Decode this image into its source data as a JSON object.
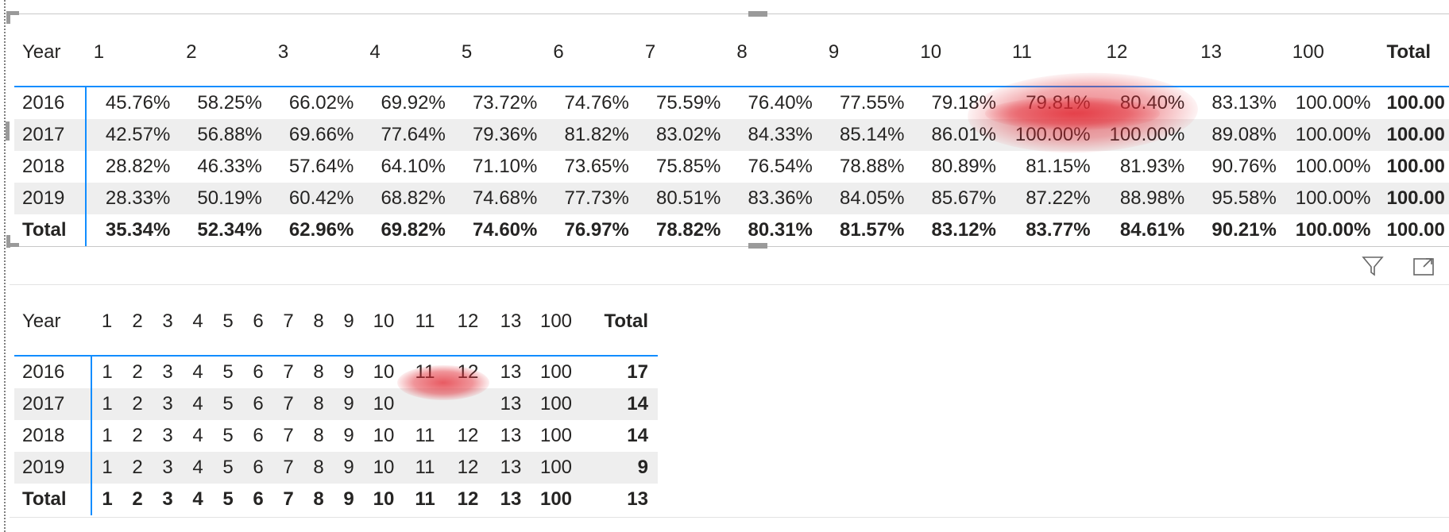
{
  "icons": {
    "filter": "filter-icon",
    "focus": "focus-mode-icon"
  },
  "colors": {
    "accent": "#118dff",
    "row_alt": "#eeeeee",
    "annotation_red": "#e12832"
  },
  "percent_table": {
    "columns": [
      "Year",
      "1",
      "2",
      "3",
      "4",
      "5",
      "6",
      "7",
      "8",
      "9",
      "10",
      "11",
      "12",
      "13",
      "100",
      "Total"
    ],
    "rows": [
      {
        "year": "2016",
        "values": [
          "45.76%",
          "58.25%",
          "66.02%",
          "69.92%",
          "73.72%",
          "74.76%",
          "75.59%",
          "76.40%",
          "77.55%",
          "79.18%",
          "79.81%",
          "80.40%",
          "83.13%",
          "100.00%"
        ],
        "total": "100.00"
      },
      {
        "year": "2017",
        "values": [
          "42.57%",
          "56.88%",
          "69.66%",
          "77.64%",
          "79.36%",
          "81.82%",
          "83.02%",
          "84.33%",
          "85.14%",
          "86.01%",
          "100.00%",
          "100.00%",
          "89.08%",
          "100.00%"
        ],
        "total": "100.00"
      },
      {
        "year": "2018",
        "values": [
          "28.82%",
          "46.33%",
          "57.64%",
          "64.10%",
          "71.10%",
          "73.65%",
          "75.85%",
          "76.54%",
          "78.88%",
          "80.89%",
          "81.15%",
          "81.93%",
          "90.76%",
          "100.00%"
        ],
        "total": "100.00"
      },
      {
        "year": "2019",
        "values": [
          "28.33%",
          "50.19%",
          "60.42%",
          "68.82%",
          "74.68%",
          "77.73%",
          "80.51%",
          "83.36%",
          "84.05%",
          "85.67%",
          "87.22%",
          "88.98%",
          "95.58%",
          "100.00%"
        ],
        "total": "100.00"
      }
    ],
    "total_row": {
      "year": "Total",
      "values": [
        "35.34%",
        "52.34%",
        "62.96%",
        "69.82%",
        "74.60%",
        "76.97%",
        "78.82%",
        "80.31%",
        "81.57%",
        "83.12%",
        "83.77%",
        "84.61%",
        "90.21%",
        "100.00%"
      ],
      "total": "100.00"
    }
  },
  "count_table": {
    "columns": [
      "Year",
      "1",
      "2",
      "3",
      "4",
      "5",
      "6",
      "7",
      "8",
      "9",
      "10",
      "11",
      "12",
      "13",
      "100",
      "Total"
    ],
    "rows": [
      {
        "year": "2016",
        "values": [
          "1",
          "2",
          "3",
          "4",
          "5",
          "6",
          "7",
          "8",
          "9",
          "10",
          "11",
          "12",
          "13",
          "100"
        ],
        "total": "17"
      },
      {
        "year": "2017",
        "values": [
          "1",
          "2",
          "3",
          "4",
          "5",
          "6",
          "7",
          "8",
          "9",
          "10",
          "",
          "",
          "13",
          "100"
        ],
        "total": "14"
      },
      {
        "year": "2018",
        "values": [
          "1",
          "2",
          "3",
          "4",
          "5",
          "6",
          "7",
          "8",
          "9",
          "10",
          "11",
          "12",
          "13",
          "100"
        ],
        "total": "14"
      },
      {
        "year": "2019",
        "values": [
          "1",
          "2",
          "3",
          "4",
          "5",
          "6",
          "7",
          "8",
          "9",
          "10",
          "11",
          "12",
          "13",
          "100"
        ],
        "total": "9"
      }
    ],
    "total_row": {
      "year": "Total",
      "values": [
        "1",
        "2",
        "3",
        "4",
        "5",
        "6",
        "7",
        "8",
        "9",
        "10",
        "11",
        "12",
        "13",
        "100"
      ],
      "total": "13"
    }
  }
}
